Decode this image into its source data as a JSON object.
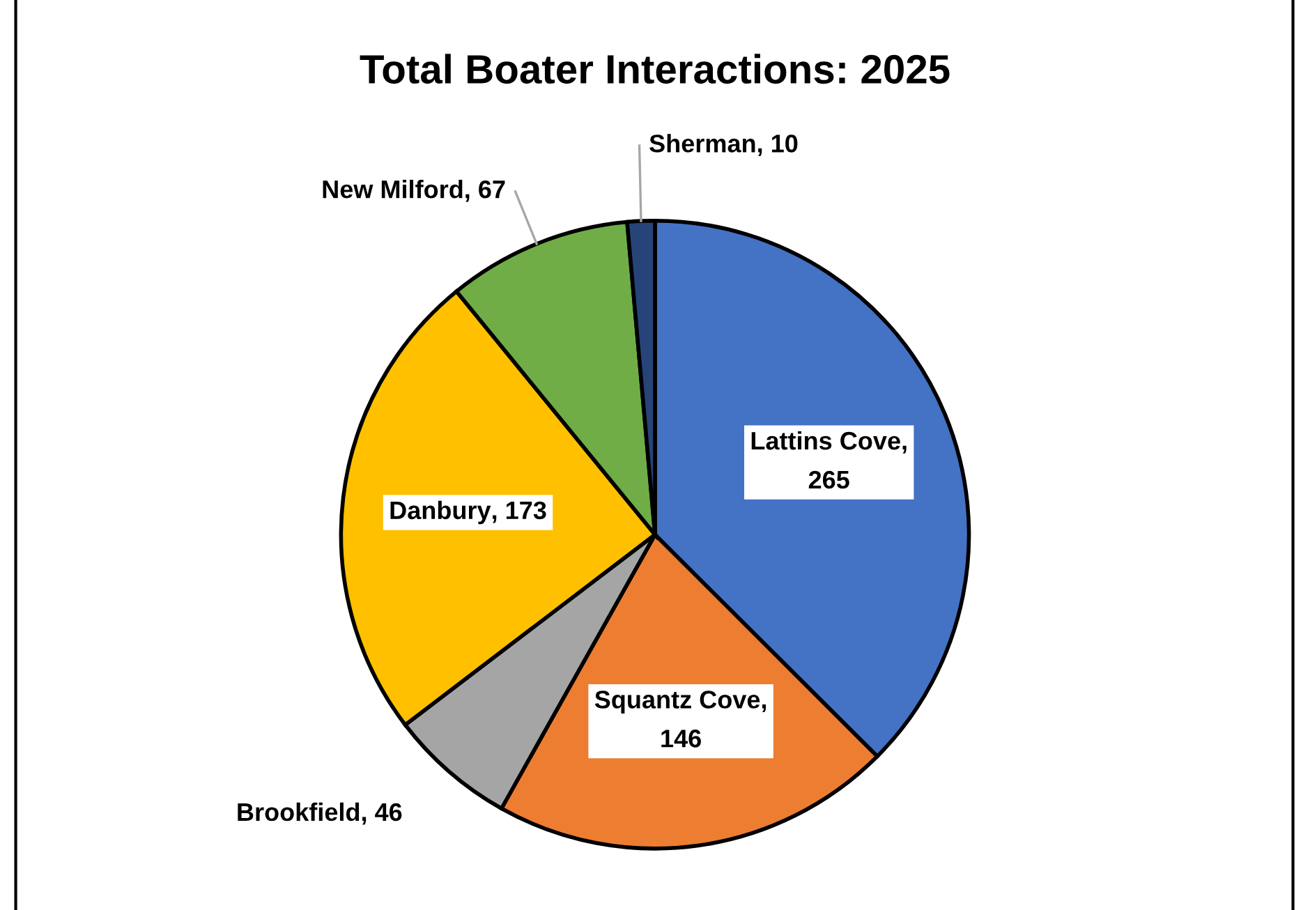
{
  "chart_data": {
    "type": "pie",
    "title": "Total Boater Interactions: 2025",
    "categories": [
      "Lattins Cove",
      "Squantz Cove",
      "Brookfield",
      "Danbury",
      "New Milford",
      "Sherman"
    ],
    "values": [
      265,
      146,
      46,
      173,
      67,
      10
    ],
    "colors": [
      "#4472c4",
      "#ed7d31",
      "#a5a5a5",
      "#ffc000",
      "#70ad47",
      "#264478"
    ],
    "value_labels": [
      ", 265",
      ", 146",
      ", 46",
      ", 173",
      ", 67",
      ", 10"
    ],
    "legend": false
  }
}
